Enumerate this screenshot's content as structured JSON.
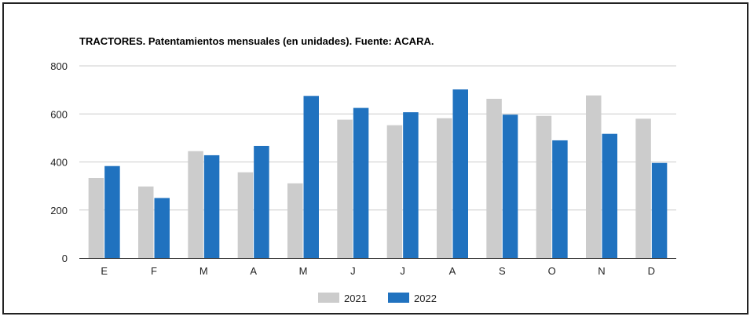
{
  "chart_data": {
    "type": "bar",
    "title": "TRACTORES. Patentamientos mensuales (en unidades). Fuente: ACARA.",
    "xlabel": "",
    "ylabel": "",
    "categories": [
      "E",
      "F",
      "M",
      "A",
      "M",
      "J",
      "J",
      "A",
      "S",
      "O",
      "N",
      "D"
    ],
    "ylim": [
      0,
      800
    ],
    "yticks": [
      0,
      200,
      400,
      600,
      800
    ],
    "grid": true,
    "legend_position": "bottom",
    "series": [
      {
        "name": "2021",
        "color": "#cccccc",
        "values": [
          333,
          298,
          445,
          357,
          311,
          576,
          553,
          582,
          663,
          592,
          677,
          580
        ]
      },
      {
        "name": "2022",
        "color": "#2072bf",
        "values": [
          383,
          250,
          428,
          467,
          675,
          625,
          607,
          702,
          597,
          490,
          517,
          396
        ]
      }
    ]
  }
}
